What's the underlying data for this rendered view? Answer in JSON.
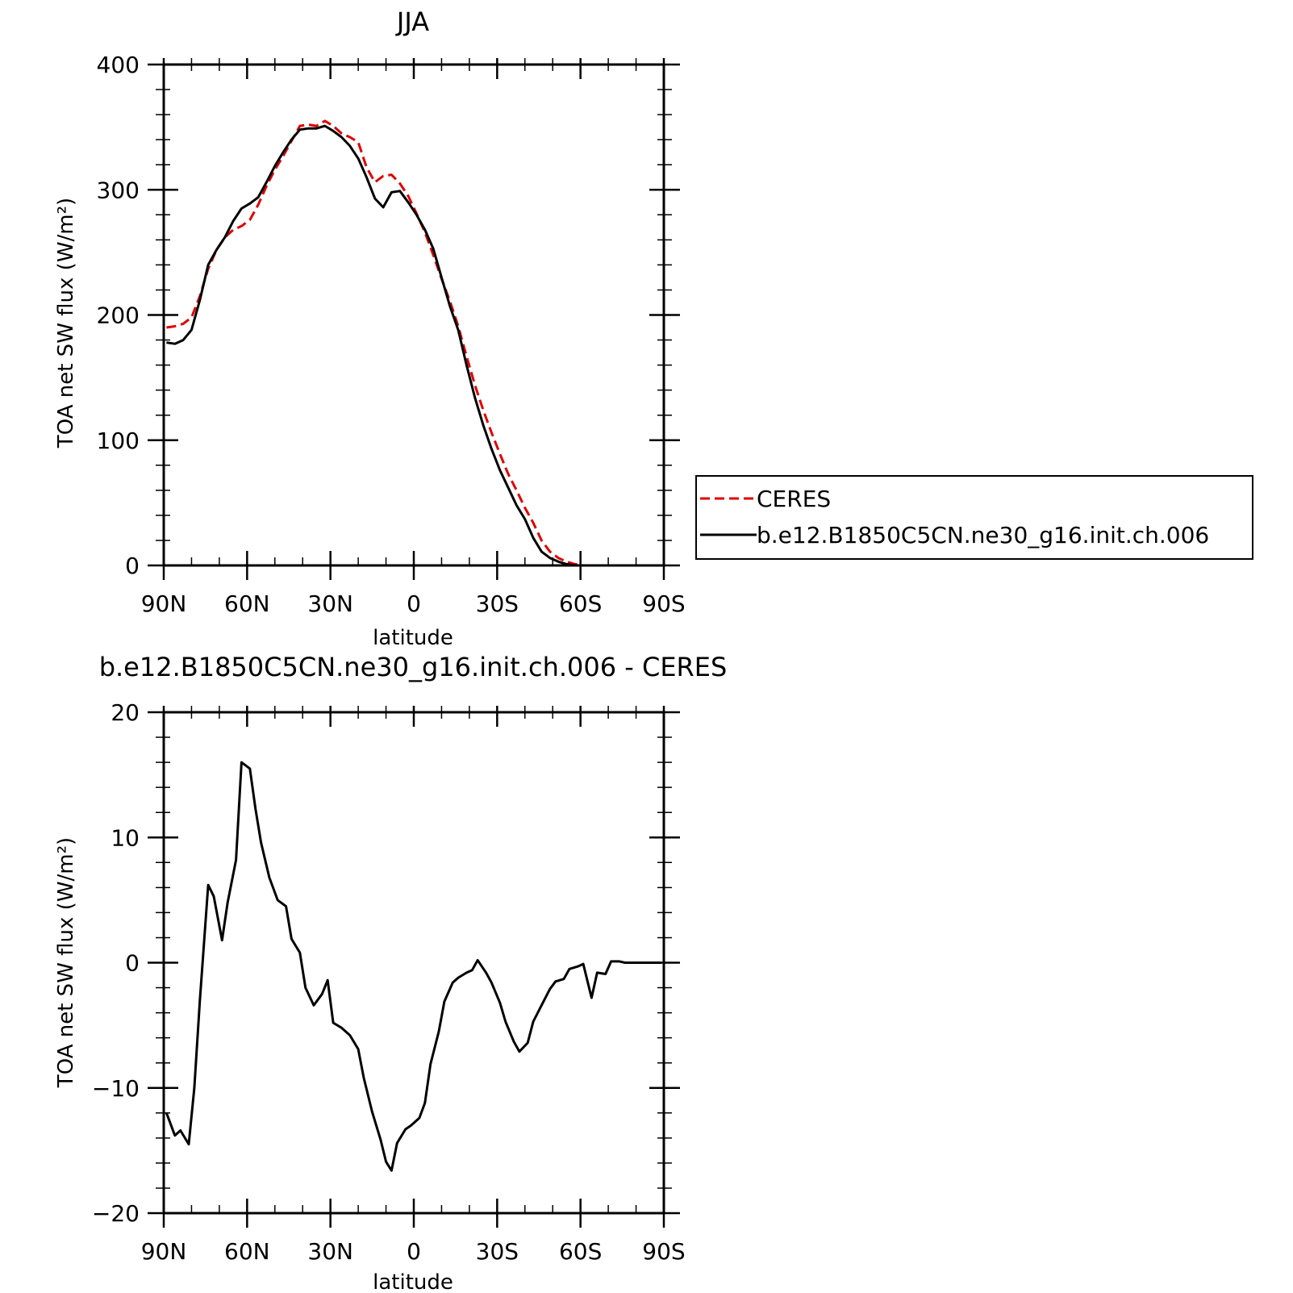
{
  "chart_data": [
    {
      "type": "line",
      "title": "JJA",
      "xlabel": "latitude",
      "ylabel": "TOA net SW flux (W/m²)",
      "xlim": [
        90,
        -90
      ],
      "ylim": [
        0,
        400
      ],
      "xticks": [
        90,
        60,
        30,
        0,
        -30,
        -60,
        -90
      ],
      "xtick_labels": [
        "90N",
        "60N",
        "30N",
        "0",
        "30S",
        "60S",
        "90S"
      ],
      "yticks": [
        0,
        100,
        200,
        300,
        400
      ],
      "ytick_labels": [
        "0",
        "100",
        "200",
        "300",
        "400"
      ],
      "legend_position": "right",
      "series": [
        {
          "name": "CERES",
          "color": "#e00000",
          "dash": "dashed",
          "x": [
            89,
            86,
            83,
            80,
            77,
            74,
            71,
            68,
            65,
            62,
            59,
            56,
            53,
            50,
            47,
            44,
            41,
            38,
            35,
            32,
            29,
            26,
            23,
            20,
            17,
            14,
            11,
            8,
            5,
            2,
            -1,
            -4,
            -7,
            -10,
            -13,
            -16,
            -19,
            -22,
            -25,
            -28,
            -31,
            -34,
            -37,
            -40,
            -43,
            -46,
            -49,
            -52,
            -55,
            -58,
            -61,
            -64,
            -67,
            -70,
            -73,
            -76,
            -79,
            -82,
            -85,
            -88
          ],
          "y": [
            190,
            191,
            193,
            198,
            215,
            237,
            252,
            262,
            268,
            271,
            276,
            288,
            303,
            316,
            327,
            339,
            351,
            352,
            351,
            355,
            351,
            345,
            342,
            338,
            318,
            306,
            311,
            312,
            305,
            295,
            281,
            266,
            248,
            229,
            211,
            191,
            167,
            144,
            124,
            106,
            89,
            73,
            60,
            46,
            34,
            20,
            11,
            6,
            3,
            1,
            0,
            0,
            0,
            0,
            0,
            0,
            0,
            0,
            0,
            0
          ]
        },
        {
          "name": "b.e12.B1850C5CN.ne30_g16.init.ch.006",
          "color": "#000000",
          "dash": "solid",
          "x": [
            89,
            86,
            83,
            80,
            77,
            74,
            71,
            68,
            65,
            62,
            59,
            56,
            53,
            50,
            47,
            44,
            41,
            38,
            35,
            32,
            29,
            26,
            23,
            20,
            17,
            14,
            11,
            8,
            5,
            2,
            -1,
            -4,
            -7,
            -10,
            -13,
            -16,
            -19,
            -22,
            -25,
            -28,
            -31,
            -34,
            -37,
            -40,
            -43,
            -46,
            -49,
            -52,
            -55,
            -58,
            -61,
            -64,
            -67,
            -70,
            -73,
            -76,
            -79,
            -82,
            -85,
            -88
          ],
          "y": [
            178,
            177,
            180,
            188,
            212,
            240,
            252,
            262,
            275,
            285,
            289,
            294,
            306,
            319,
            330,
            340,
            348,
            349,
            349,
            351,
            347,
            342,
            335,
            325,
            310,
            293,
            286,
            298,
            299,
            290,
            280,
            268,
            253,
            230,
            207,
            188,
            160,
            134,
            112,
            93,
            76,
            62,
            48,
            37,
            22,
            11,
            6,
            3,
            1,
            0,
            0,
            0,
            0,
            0,
            0,
            0,
            0,
            0,
            0,
            0
          ]
        }
      ]
    },
    {
      "type": "line",
      "title": "b.e12.B1850C5CN.ne30_g16.init.ch.006 - CERES",
      "xlabel": "latitude",
      "ylabel": "TOA net SW flux (W/m²)",
      "xlim": [
        90,
        -90
      ],
      "ylim": [
        -20,
        20
      ],
      "xticks": [
        90,
        60,
        30,
        0,
        -30,
        -60,
        -90
      ],
      "xtick_labels": [
        "90N",
        "60N",
        "30N",
        "0",
        "30S",
        "60S",
        "90S"
      ],
      "yticks": [
        -20,
        -10,
        0,
        10,
        20
      ],
      "ytick_labels": [
        "−20",
        "−10",
        "0",
        "10",
        "20"
      ],
      "series": [
        {
          "name": "",
          "color": "#000000",
          "dash": "solid",
          "x": [
            89,
            86,
            84,
            81,
            79,
            77,
            74,
            72,
            69,
            67,
            64,
            62,
            59,
            57,
            55,
            52,
            49,
            46,
            44,
            41,
            39,
            36,
            33,
            31,
            29,
            26,
            23,
            20,
            18,
            15,
            12,
            10,
            8,
            6,
            3,
            1,
            -2,
            -4,
            -6,
            -9,
            -11,
            -14,
            -16,
            -19,
            -21,
            -23,
            -26,
            -28,
            -31,
            -33,
            -36,
            -38,
            -41,
            -43,
            -46,
            -49,
            -51,
            -54,
            -56,
            -59,
            -61,
            -64,
            -66,
            -69,
            -71,
            -74,
            -76,
            -79,
            -82,
            -84,
            -87,
            -89
          ],
          "y": [
            -12,
            -13.8,
            -13.4,
            -14.5,
            -10,
            -3,
            6.2,
            5.3,
            1.8,
            4.8,
            8.2,
            16,
            15.5,
            12.3,
            9.6,
            6.8,
            5,
            4.5,
            1.9,
            0.8,
            -2,
            -3.4,
            -2.5,
            -1.4,
            -4.8,
            -5.2,
            -5.8,
            -6.9,
            -9.2,
            -11.9,
            -14.1,
            -15.9,
            -16.6,
            -14.4,
            -13.3,
            -13,
            -12.4,
            -11.2,
            -8.1,
            -5.5,
            -3.1,
            -1.6,
            -1.2,
            -0.8,
            -0.6,
            0.2,
            -0.8,
            -1.6,
            -3.2,
            -4.7,
            -6.3,
            -7.1,
            -6.4,
            -4.7,
            -3.4,
            -2.1,
            -1.5,
            -1.3,
            -0.5,
            -0.3,
            -0.1,
            -2.8,
            -0.8,
            -0.9,
            0.1,
            0.1,
            0,
            0,
            0,
            0,
            0,
            0
          ]
        }
      ]
    }
  ]
}
